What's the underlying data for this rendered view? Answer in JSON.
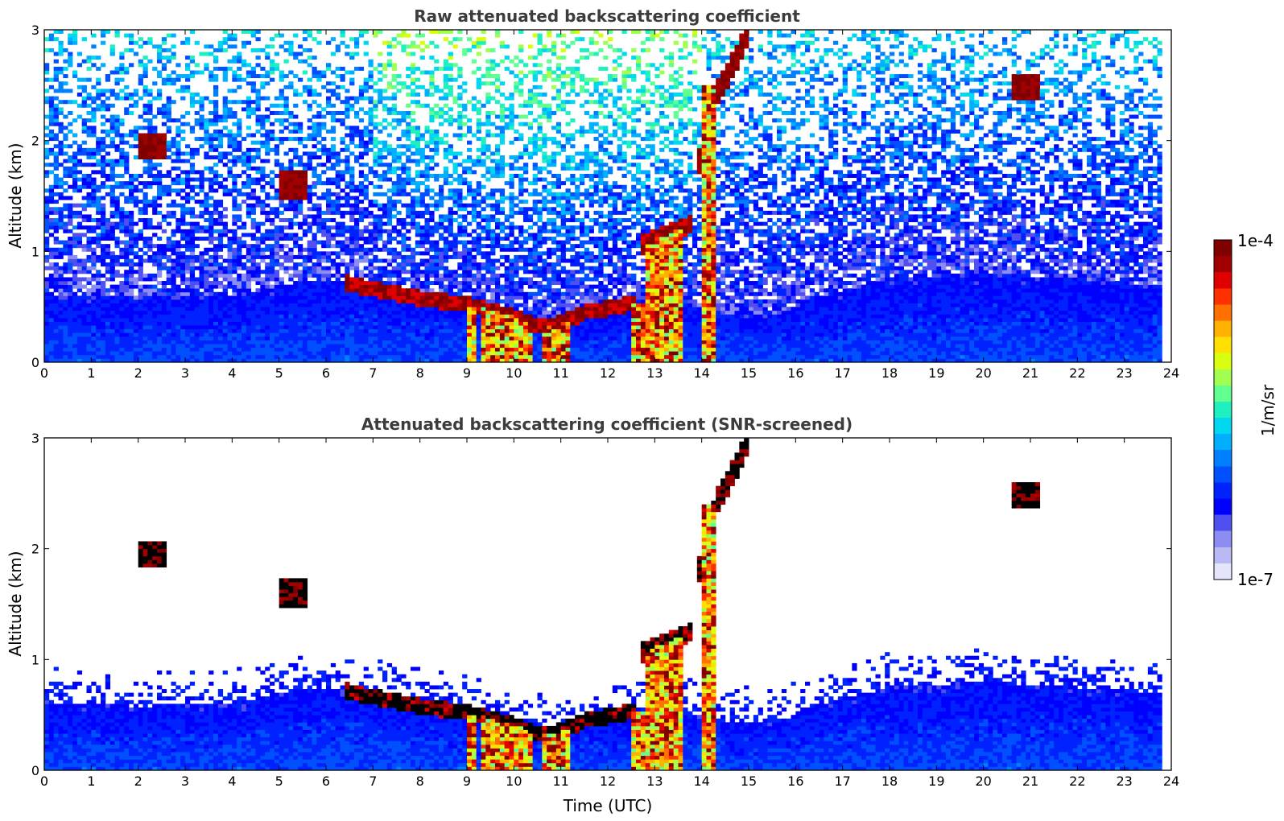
{
  "chart_data": [
    {
      "type": "heatmap",
      "title": "Raw attenuated backscattering coefficient",
      "xlabel": "",
      "ylabel": "Altitude (km)",
      "xlim": [
        0,
        24
      ],
      "ylim": [
        0,
        3
      ],
      "xticks": [
        "0",
        "1",
        "2",
        "3",
        "4",
        "5",
        "6",
        "7",
        "8",
        "9",
        "10",
        "11",
        "12",
        "13",
        "14",
        "15",
        "16",
        "17",
        "18",
        "19",
        "20",
        "21",
        "22",
        "23",
        "24"
      ],
      "yticks": [
        "0",
        "1",
        "2",
        "3"
      ],
      "screened": false
    },
    {
      "type": "heatmap",
      "title": "Attenuated backscattering coefficient (SNR-screened)",
      "xlabel": "Time (UTC)",
      "ylabel": "Altitude (km)",
      "xlim": [
        0,
        24
      ],
      "ylim": [
        0,
        3
      ],
      "xticks": [
        "0",
        "1",
        "2",
        "3",
        "4",
        "5",
        "6",
        "7",
        "8",
        "9",
        "10",
        "11",
        "12",
        "13",
        "14",
        "15",
        "16",
        "17",
        "18",
        "19",
        "20",
        "21",
        "22",
        "23",
        "24"
      ],
      "yticks": [
        "0",
        "1",
        "2",
        "3"
      ],
      "screened": true
    }
  ],
  "colorbar": {
    "label": "1/m/sr",
    "max_label": "1e-4",
    "min_label": "1e-7",
    "range_log10": [
      -7,
      -4
    ],
    "colors": [
      "#e4e4fb",
      "#b9b9f4",
      "#8c8cf2",
      "#5050f0",
      "#0000ff",
      "#0022ff",
      "#0050ff",
      "#0080ff",
      "#00b0ff",
      "#00d8f0",
      "#20f0c0",
      "#60ff90",
      "#a0ff50",
      "#d8ff10",
      "#ffe000",
      "#ffb000",
      "#ff7000",
      "#ff3000",
      "#e00000",
      "#a00000",
      "#800000"
    ]
  },
  "features": {
    "boundary_layer_top_km": [
      [
        0,
        0.62
      ],
      [
        2,
        0.58
      ],
      [
        4,
        0.6
      ],
      [
        5.3,
        0.72
      ],
      [
        6.5,
        0.75
      ],
      [
        7.5,
        0.68
      ],
      [
        8.5,
        0.58
      ],
      [
        9.5,
        0.5
      ],
      [
        10.5,
        0.38
      ],
      [
        11.2,
        0.4
      ],
      [
        12,
        0.48
      ],
      [
        12.6,
        0.52
      ],
      [
        13.5,
        0.55
      ],
      [
        14.5,
        0.45
      ],
      [
        15.5,
        0.42
      ],
      [
        16.5,
        0.6
      ],
      [
        18,
        0.75
      ],
      [
        20,
        0.8
      ],
      [
        22,
        0.75
      ],
      [
        23.8,
        0.7
      ]
    ],
    "cloud_base_km": [
      [
        6.4,
        0.72
      ],
      [
        7,
        0.66
      ],
      [
        8,
        0.58
      ],
      [
        9,
        0.52
      ],
      [
        10,
        0.42
      ],
      [
        10.5,
        0.32
      ],
      [
        11,
        0.35
      ],
      [
        11.5,
        0.45
      ],
      [
        12.2,
        0.5
      ],
      [
        12.6,
        0.54
      ]
    ],
    "elevated_cloud_km": [
      [
        12.7,
        1.05
      ],
      [
        13.2,
        1.15
      ],
      [
        13.8,
        1.25
      ]
    ],
    "rising_layer_km": [
      [
        13.9,
        1.75
      ],
      [
        14.1,
        2.0
      ],
      [
        14.3,
        2.4
      ],
      [
        14.5,
        2.55
      ],
      [
        14.8,
        2.8
      ],
      [
        15.0,
        3.0
      ]
    ],
    "small_clouds": [
      [
        5.35,
        1.6
      ],
      [
        20.85,
        2.48
      ],
      [
        2.3,
        1.95
      ]
    ],
    "precip_columns_h": [
      [
        9.0,
        9.2
      ],
      [
        9.3,
        10.4
      ],
      [
        10.6,
        11.2
      ],
      [
        12.5,
        12.8
      ],
      [
        12.85,
        13.6
      ],
      [
        14.05,
        14.25
      ]
    ]
  }
}
